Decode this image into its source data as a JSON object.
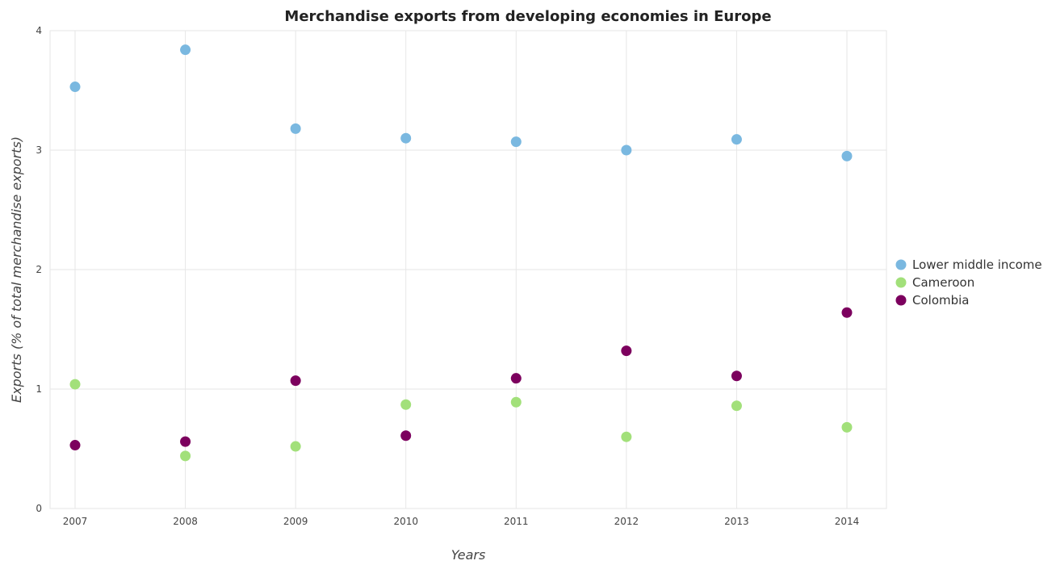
{
  "chart_data": {
    "type": "scatter",
    "title": "Merchandise exports from developing economies in Europe",
    "xlabel": "Years",
    "ylabel": "Exports (% of total merchandise exports)",
    "categories": [
      "2007",
      "2008",
      "2009",
      "2010",
      "2011",
      "2012",
      "2013",
      "2014"
    ],
    "ylim": [
      0,
      4
    ],
    "yticks": [
      "0",
      "1",
      "2",
      "3",
      "4"
    ],
    "grid": true,
    "legend_position": "right",
    "series": [
      {
        "name": "Lower middle income",
        "color": "#7ab8e0",
        "values": [
          3.53,
          3.84,
          3.18,
          3.1,
          3.07,
          3.0,
          3.09,
          2.95
        ]
      },
      {
        "name": "Cameroon",
        "color": "#a2e07a",
        "values": [
          1.04,
          0.44,
          0.52,
          0.87,
          0.89,
          0.6,
          0.86,
          0.68
        ]
      },
      {
        "name": "Colombia",
        "color": "#7c005e",
        "values": [
          0.53,
          0.56,
          1.07,
          0.61,
          1.09,
          1.32,
          1.11,
          1.64
        ]
      }
    ]
  }
}
